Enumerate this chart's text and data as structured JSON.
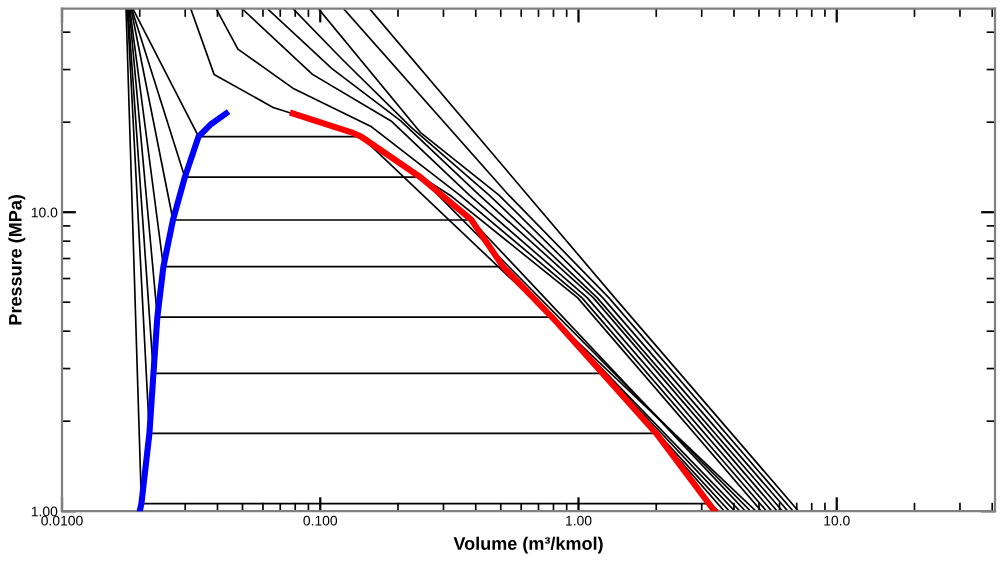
{
  "chart_data": {
    "type": "line",
    "xlabel": "Volume (m³/kmol)",
    "ylabel": "Pressure (MPa)",
    "log": "xy",
    "grid": false,
    "legend": false,
    "marker": "none",
    "line_style": "solid",
    "xlim": [
      0.01,
      41
    ],
    "ylim": [
      1,
      48
    ],
    "xticks": [
      {
        "value": 0.01,
        "label": "0.0100"
      },
      {
        "value": 0.1,
        "label": "0.100"
      },
      {
        "value": 1,
        "label": "1.00"
      },
      {
        "value": 10,
        "label": "10.0"
      }
    ],
    "yticks": [
      {
        "value": 1,
        "label": "1.00"
      },
      {
        "value": 10,
        "label": "10.0"
      }
    ],
    "series": [
      {
        "color": "#0000ff",
        "x": [
          0.02,
          0.0203,
          0.0218,
          0.0226,
          0.0234,
          0.0247,
          0.0269,
          0.0299,
          0.0338,
          0.0375,
          0.0432
        ],
        "values": [
          1.0,
          1.06,
          1.82,
          2.89,
          4.46,
          6.58,
          9.42,
          13.1,
          17.9,
          19.6,
          21.4
        ]
      },
      {
        "color": "#ff0000",
        "x": [
          0.0783,
          0.132,
          0.144,
          0.244,
          0.385,
          0.51,
          0.789,
          1.24,
          2.0,
          3.2,
          3.37
        ],
        "values": [
          21.4,
          18.5,
          17.9,
          13.1,
          9.42,
          6.58,
          4.46,
          2.89,
          1.82,
          1.06,
          1.0
        ]
      },
      {
        "color": "#000000",
        "x": [
          0.0177,
          0.0203,
          3.2,
          3.5
        ],
        "values": [
          48,
          1.06,
          1.06,
          1.0
        ]
      },
      {
        "color": "#000000",
        "x": [
          0.0179,
          0.0218,
          2.0,
          3.67
        ],
        "values": [
          48,
          1.82,
          1.82,
          1.0
        ]
      },
      {
        "color": "#000000",
        "x": [
          0.018,
          0.0226,
          1.24,
          3.84
        ],
        "values": [
          48,
          2.89,
          2.89,
          1.0
        ]
      },
      {
        "color": "#000000",
        "x": [
          0.0182,
          0.0234,
          0.789,
          4.03
        ],
        "values": [
          48,
          4.46,
          4.46,
          1.0
        ]
      },
      {
        "color": "#000000",
        "x": [
          0.0183,
          0.0247,
          0.51,
          4.22
        ],
        "values": [
          48,
          6.58,
          6.58,
          1.0
        ]
      },
      {
        "color": "#000000",
        "x": [
          0.0185,
          0.0269,
          0.385,
          4.43
        ],
        "values": [
          48,
          9.42,
          9.42,
          1.0
        ]
      },
      {
        "color": "#000000",
        "x": [
          0.0186,
          0.0299,
          0.244,
          4.64
        ],
        "values": [
          48,
          13.1,
          13.1,
          1.0
        ]
      },
      {
        "color": "#000000",
        "x": [
          0.0188,
          0.0338,
          0.144,
          4.87
        ],
        "values": [
          48,
          17.9,
          17.9,
          1.0
        ]
      },
      {
        "color": "#000000",
        "x": [
          0.0315,
          0.0388,
          0.0657,
          0.132,
          0.318,
          0.991,
          5.11
        ],
        "values": [
          48,
          28.9,
          22.4,
          18.5,
          11.4,
          5.18,
          1.0
        ]
      },
      {
        "color": "#000000",
        "x": [
          0.0395,
          0.048,
          0.0783,
          0.158,
          0.347,
          1.03,
          5.35
        ],
        "values": [
          48,
          35.1,
          26.0,
          19.3,
          11.4,
          5.18,
          1.0
        ]
      },
      {
        "color": "#000000",
        "x": [
          0.0497,
          0.0933,
          0.188,
          0.378,
          1.08,
          5.61
        ],
        "values": [
          48,
          28.9,
          20.2,
          11.4,
          5.18,
          1.0
        ]
      },
      {
        "color": "#000000",
        "x": [
          0.0623,
          0.111,
          0.205,
          0.413,
          1.14,
          5.88
        ],
        "values": [
          48,
          30.2,
          20.2,
          11.4,
          5.18,
          1.0
        ]
      },
      {
        "color": "#000000",
        "x": [
          0.0783,
          0.121,
          0.224,
          0.451,
          1.18,
          6.17
        ],
        "values": [
          48,
          32.6,
          19.3,
          11.4,
          5.18,
          1.0
        ]
      },
      {
        "color": "#000000",
        "x": [
          0.0983,
          0.244,
          0.492,
          1.24,
          6.47
        ],
        "values": [
          48,
          18.5,
          11.4,
          5.18,
          1.0
        ]
      },
      {
        "color": "#000000",
        "x": [
          0.123,
          0.537,
          1.31,
          6.78
        ],
        "values": [
          48,
          11.4,
          5.18,
          1.0
        ]
      },
      {
        "color": "#000000",
        "x": [
          0.155,
          1.38,
          7.11
        ],
        "values": [
          48,
          5.18,
          1.0
        ]
      }
    ]
  }
}
